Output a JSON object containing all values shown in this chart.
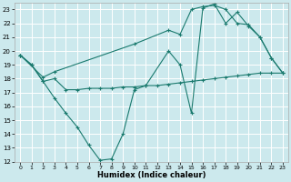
{
  "xlabel": "Humidex (Indice chaleur)",
  "background_color": "#cce9ed",
  "grid_color": "#ffffff",
  "line_color": "#1a7a6e",
  "xlim": [
    -0.5,
    23.5
  ],
  "ylim": [
    12,
    23.5
  ],
  "xticks": [
    0,
    1,
    2,
    3,
    4,
    5,
    6,
    7,
    8,
    9,
    10,
    11,
    12,
    13,
    14,
    15,
    16,
    17,
    18,
    19,
    20,
    21,
    22,
    23
  ],
  "yticks": [
    12,
    13,
    14,
    15,
    16,
    17,
    18,
    19,
    20,
    21,
    22,
    23
  ],
  "series": [
    {
      "x": [
        0,
        1,
        2,
        3,
        4,
        5,
        6,
        7,
        8,
        9,
        10,
        11,
        13,
        14,
        15,
        16,
        17,
        18,
        19,
        20,
        21,
        22,
        23
      ],
      "y": [
        19.7,
        19.0,
        17.8,
        16.6,
        15.5,
        14.5,
        13.2,
        12.1,
        12.2,
        14.0,
        17.2,
        17.5,
        20.0,
        19.0,
        15.5,
        23.1,
        23.4,
        22.0,
        22.8,
        21.8,
        21.0,
        19.5,
        18.4
      ]
    },
    {
      "x": [
        0,
        2,
        3,
        10,
        13,
        14,
        15,
        16,
        17,
        18,
        19,
        20,
        21,
        22,
        23
      ],
      "y": [
        19.7,
        18.1,
        18.5,
        20.5,
        21.5,
        21.2,
        23.0,
        23.2,
        23.3,
        23.0,
        22.0,
        21.9,
        21.0,
        19.5,
        18.4
      ]
    },
    {
      "x": [
        0,
        1,
        2,
        3,
        4,
        5,
        6,
        7,
        8,
        9,
        10,
        11,
        12,
        13,
        14,
        15,
        16,
        17,
        18,
        19,
        20,
        21,
        22,
        23
      ],
      "y": [
        19.7,
        19.0,
        17.8,
        18.0,
        17.2,
        17.2,
        17.3,
        17.3,
        17.3,
        17.4,
        17.4,
        17.5,
        17.5,
        17.6,
        17.7,
        17.8,
        17.9,
        18.0,
        18.1,
        18.2,
        18.3,
        18.4,
        18.4,
        18.4
      ]
    }
  ]
}
